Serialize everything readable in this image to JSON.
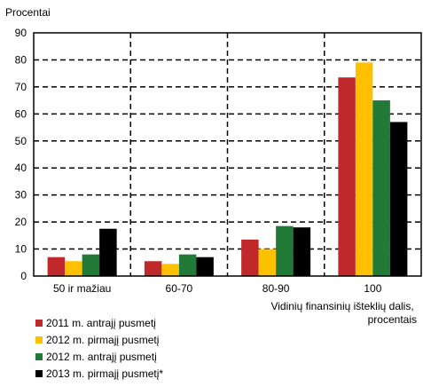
{
  "chart_data": {
    "type": "bar",
    "ylabel": "Procentai",
    "xlabel_lines": [
      "Vidinių finansinių išteklių dalis,",
      "procentais"
    ],
    "categories": [
      "50 ir mažiau",
      "60-70",
      "80-90",
      "100"
    ],
    "ylim": [
      0,
      90
    ],
    "yticks": [
      0,
      10,
      20,
      30,
      40,
      50,
      60,
      70,
      80,
      90
    ],
    "grid": "dashed",
    "legend_position": "bottom-left",
    "series": [
      {
        "name": "2011 m. antrajį pusmetį",
        "color": "#c0292b",
        "values": [
          7,
          5.5,
          13.5,
          73.5
        ]
      },
      {
        "name": "2012 m. pirmajį pusmetį",
        "color": "#ffc000",
        "values": [
          5.5,
          4.5,
          10,
          79
        ]
      },
      {
        "name": "2012 m. antrajį pusmetį",
        "color": "#217a35",
        "values": [
          8,
          8,
          18.5,
          65
        ]
      },
      {
        "name": "2013 m. pirmajį pusmetį*",
        "color": "#000000",
        "values": [
          17.5,
          7,
          18,
          57
        ]
      }
    ]
  }
}
